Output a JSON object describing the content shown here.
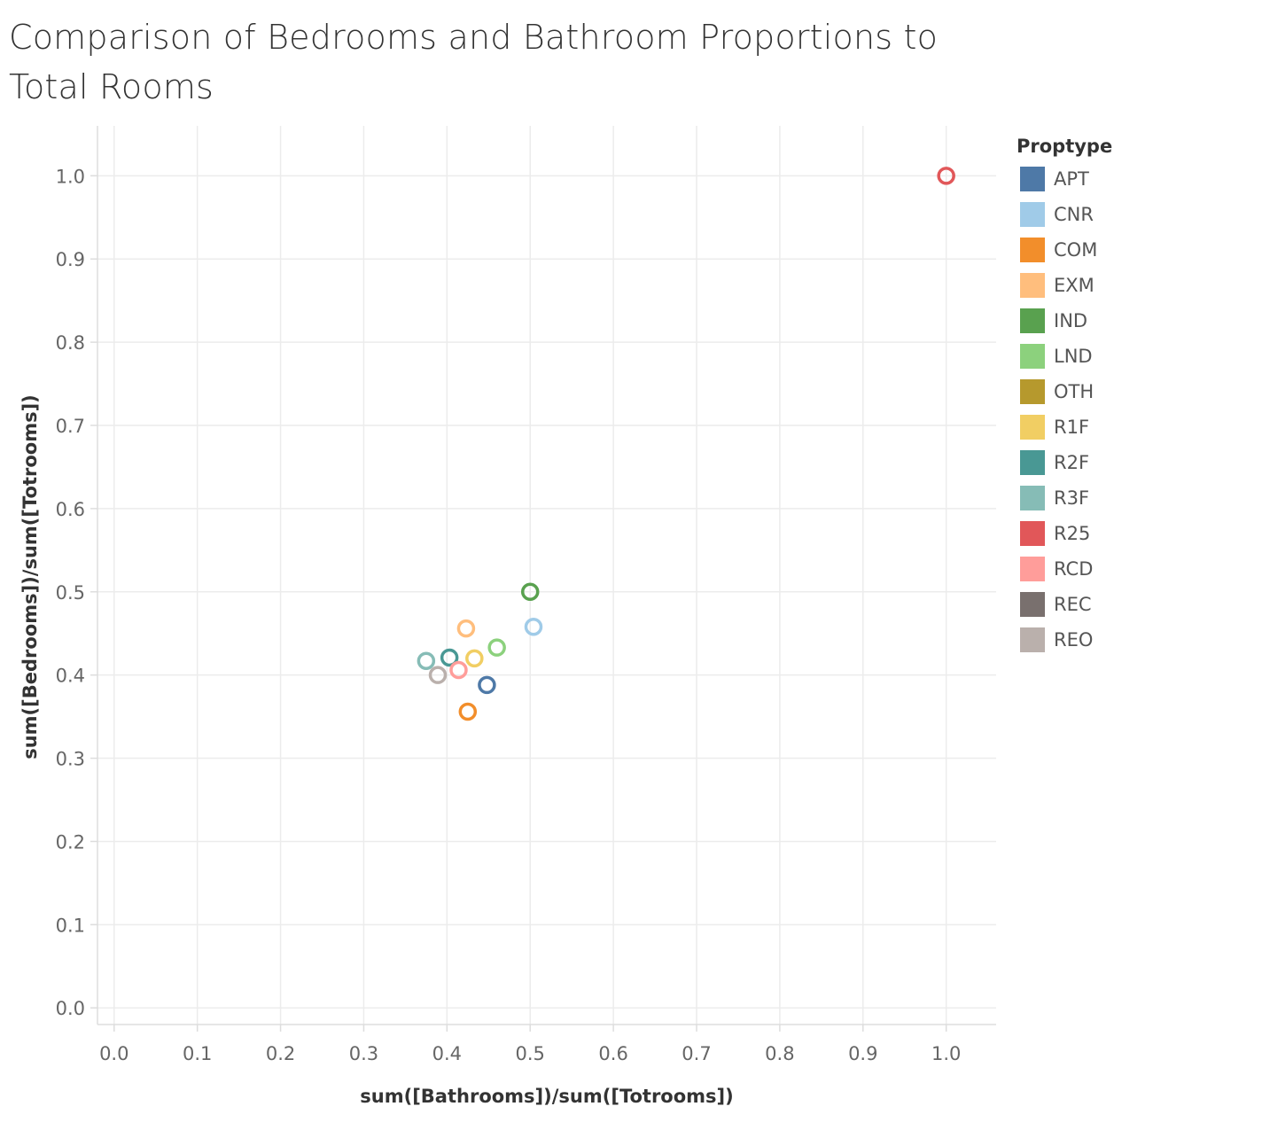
{
  "chart_data": {
    "type": "scatter",
    "title": "Comparison of Bedrooms and Bathroom Proportions to Total Rooms",
    "xlabel": "sum([Bathrooms])/sum([Totrooms])",
    "ylabel": "sum([Bedrooms])/sum([Totrooms])",
    "xlim": [
      -0.02,
      1.06
    ],
    "ylim": [
      -0.02,
      1.06
    ],
    "xticks": [
      "0.0",
      "0.1",
      "0.2",
      "0.3",
      "0.4",
      "0.5",
      "0.6",
      "0.7",
      "0.8",
      "0.9",
      "1.0"
    ],
    "yticks": [
      "0.0",
      "0.1",
      "0.2",
      "0.3",
      "0.4",
      "0.5",
      "0.6",
      "0.7",
      "0.8",
      "0.9",
      "1.0"
    ],
    "grid": true,
    "marker": "open-circle",
    "legend": {
      "title": "Proptype",
      "position": "right",
      "entries": [
        {
          "label": "APT",
          "color": "#4e79a7"
        },
        {
          "label": "CNR",
          "color": "#a0cbe8"
        },
        {
          "label": "COM",
          "color": "#f28e2b"
        },
        {
          "label": "EXM",
          "color": "#ffbe7d"
        },
        {
          "label": "IND",
          "color": "#59a14f"
        },
        {
          "label": "LND",
          "color": "#8cd17d"
        },
        {
          "label": "OTH",
          "color": "#b6992d"
        },
        {
          "label": "R1F",
          "color": "#f1ce63"
        },
        {
          "label": "R2F",
          "color": "#499894"
        },
        {
          "label": "R3F",
          "color": "#86bcb6"
        },
        {
          "label": "R25",
          "color": "#e15759"
        },
        {
          "label": "RCD",
          "color": "#ff9d9a"
        },
        {
          "label": "REC",
          "color": "#79706e"
        },
        {
          "label": "REO",
          "color": "#bab0ac"
        }
      ]
    },
    "points": [
      {
        "category": "APT",
        "x": 0.448,
        "y": 0.388,
        "color": "#4e79a7"
      },
      {
        "category": "CNR",
        "x": 0.504,
        "y": 0.458,
        "color": "#a0cbe8"
      },
      {
        "category": "COM",
        "x": 0.425,
        "y": 0.356,
        "color": "#f28e2b"
      },
      {
        "category": "EXM",
        "x": 0.423,
        "y": 0.456,
        "color": "#ffbe7d"
      },
      {
        "category": "IND",
        "x": 0.5,
        "y": 0.5,
        "color": "#59a14f"
      },
      {
        "category": "LND",
        "x": 0.46,
        "y": 0.433,
        "color": "#8cd17d"
      },
      {
        "category": "R1F",
        "x": 0.433,
        "y": 0.42,
        "color": "#f1ce63"
      },
      {
        "category": "R2F",
        "x": 0.403,
        "y": 0.421,
        "color": "#499894"
      },
      {
        "category": "R3F",
        "x": 0.375,
        "y": 0.417,
        "color": "#86bcb6"
      },
      {
        "category": "R25",
        "x": 1.0,
        "y": 1.0,
        "color": "#e15759"
      },
      {
        "category": "RCD",
        "x": 0.414,
        "y": 0.406,
        "color": "#ff9d9a"
      },
      {
        "category": "REO",
        "x": 0.389,
        "y": 0.4,
        "color": "#bab0ac"
      }
    ]
  }
}
